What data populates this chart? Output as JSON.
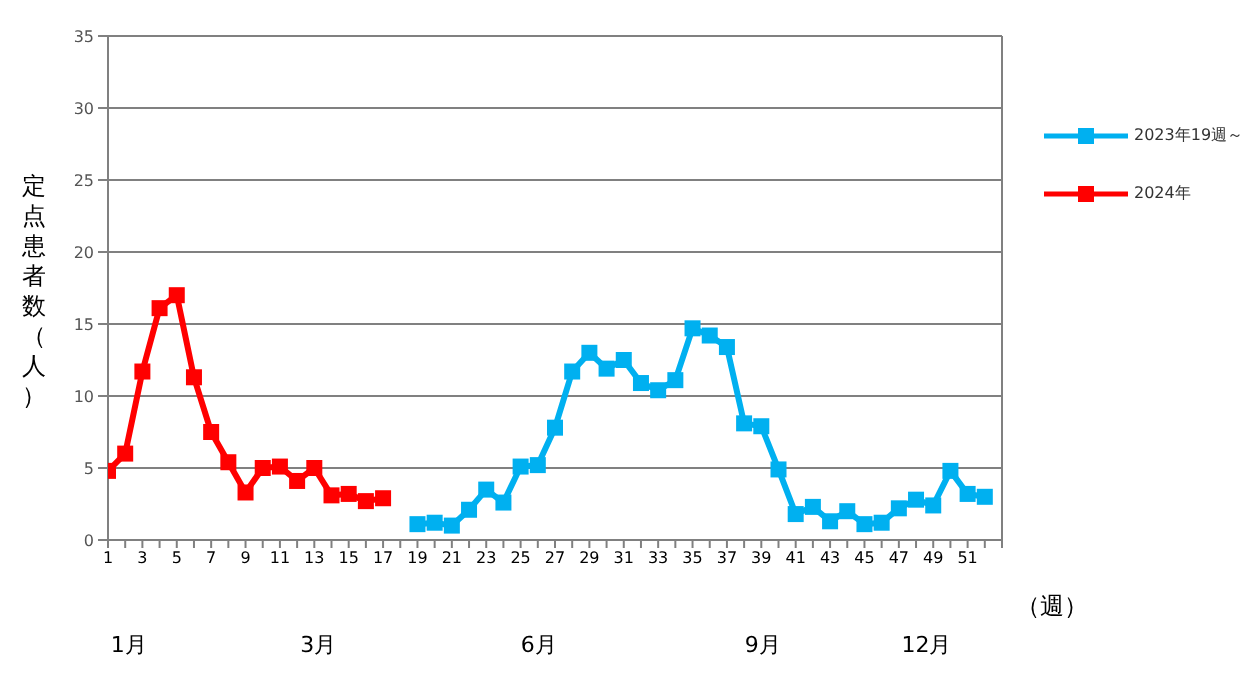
{
  "chart_data": {
    "type": "line",
    "ylabel": "定点患者数（人）",
    "xlabel": "（週）",
    "annotations": [
      "1月",
      "3月",
      "6月",
      "9月",
      "12月"
    ],
    "x": [
      1,
      2,
      3,
      4,
      5,
      6,
      7,
      8,
      9,
      10,
      11,
      12,
      13,
      14,
      15,
      16,
      17,
      18,
      19,
      20,
      21,
      22,
      23,
      24,
      25,
      26,
      27,
      28,
      29,
      30,
      31,
      32,
      33,
      34,
      35,
      36,
      37,
      38,
      39,
      40,
      41,
      42,
      43,
      44,
      45,
      46,
      47,
      48,
      49,
      50,
      51,
      52
    ],
    "series": [
      {
        "name": "2023年19週～",
        "color": "#00b0f0",
        "values": [
          null,
          null,
          null,
          null,
          null,
          null,
          null,
          null,
          null,
          null,
          null,
          null,
          null,
          null,
          null,
          null,
          null,
          null,
          1.1,
          1.2,
          1.0,
          2.1,
          3.5,
          2.6,
          5.1,
          5.2,
          7.8,
          11.7,
          13.0,
          11.9,
          12.5,
          10.9,
          10.4,
          11.1,
          14.7,
          14.2,
          13.4,
          8.1,
          7.9,
          4.9,
          1.8,
          2.3,
          1.3,
          2.0,
          1.1,
          1.2,
          2.2,
          2.8,
          2.4,
          4.8,
          3.2,
          3.0
        ]
      },
      {
        "name": "2024年",
        "color": "#ff0000",
        "values": [
          4.8,
          6.0,
          11.7,
          16.1,
          17.0,
          11.3,
          7.5,
          5.4,
          3.3,
          5.0,
          5.1,
          4.1,
          5.0,
          3.1,
          3.2,
          2.7,
          2.9,
          null,
          null,
          null,
          null,
          null,
          null,
          null,
          null,
          null,
          null,
          null,
          null,
          null,
          null,
          null,
          null,
          null,
          null,
          null,
          null,
          null,
          null,
          null,
          null,
          null,
          null,
          null,
          null,
          null,
          null,
          null,
          null,
          null,
          null,
          null
        ]
      }
    ],
    "xlim": [
      1,
      53
    ],
    "xticks": [
      1,
      {
        "value": 2,
        "label": null
      },
      3,
      {
        "value": 4,
        "label": null
      },
      5,
      {
        "value": 6,
        "label": null
      },
      7,
      {
        "value": 8,
        "label": null
      },
      9,
      {
        "value": 10,
        "label": null
      },
      11,
      {
        "value": 12,
        "label": null
      },
      13,
      {
        "value": 14,
        "label": null
      },
      15,
      {
        "value": 16,
        "label": null
      },
      17,
      {
        "value": 18,
        "label": null
      },
      19,
      {
        "value": 20,
        "label": null
      },
      21,
      {
        "value": 22,
        "label": null
      },
      23,
      {
        "value": 24,
        "label": null
      },
      25,
      {
        "value": 26,
        "label": null
      },
      27,
      {
        "value": 28,
        "label": null
      },
      29,
      {
        "value": 30,
        "label": null
      },
      31,
      {
        "value": 32,
        "label": null
      },
      33,
      {
        "value": 34,
        "label": null
      },
      35,
      {
        "value": 36,
        "label": null
      },
      37,
      {
        "value": 38,
        "label": null
      },
      39,
      {
        "value": 40,
        "label": null
      },
      41,
      {
        "value": 42,
        "label": null
      },
      43,
      {
        "value": 44,
        "label": null
      },
      45,
      {
        "value": 46,
        "label": null
      },
      47,
      {
        "value": 48,
        "label": null
      },
      49,
      {
        "value": 50,
        "label": null
      },
      51,
      {
        "value": 52,
        "label": null
      },
      {
        "value": 53,
        "label": null
      }
    ],
    "ylim": [
      0,
      35
    ],
    "yticks": [
      0,
      5,
      10,
      15,
      20,
      25,
      30,
      35
    ],
    "grid": "y",
    "legend": "right",
    "marker": "square",
    "line_style": "solid"
  }
}
